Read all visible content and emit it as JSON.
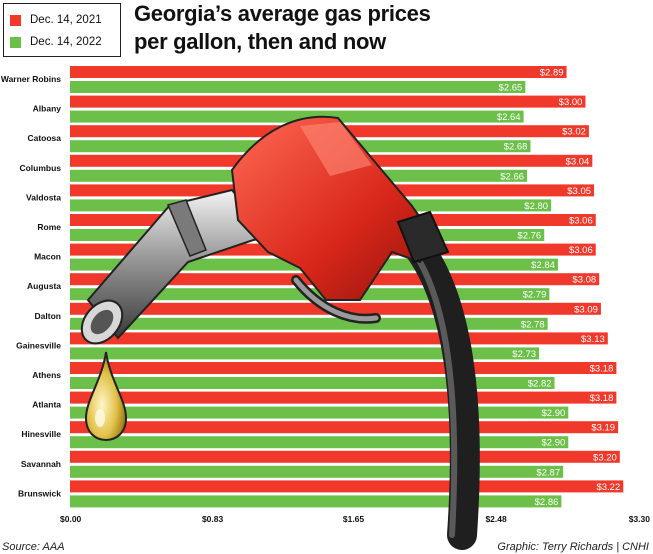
{
  "title": "Georgia’s average gas prices\nper gallon, then and now",
  "source": "Source: AAA",
  "credit": "Graphic: Terry Richards | CNHI",
  "colors": {
    "series_2021": "#f0392b",
    "series_2022": "#6cc04a"
  },
  "chart_data": {
    "type": "bar",
    "orientation": "horizontal",
    "title": "Georgia’s average gas prices per gallon, then and now",
    "xlim": [
      0,
      3.3
    ],
    "x_ticks": [
      "$0.00",
      "$0.83",
      "$1.65",
      "$2.48",
      "$3.30"
    ],
    "x_tick_values": [
      0,
      0.83,
      1.65,
      2.48,
      3.3
    ],
    "legend_position": "top-left",
    "categories": [
      "Warner Robins",
      "Albany",
      "Catoosa",
      "Columbus",
      "Valdosta",
      "Rome",
      "Macon",
      "Augusta",
      "Dalton",
      "Gainesville",
      "Athens",
      "Atlanta",
      "Hinesville",
      "Savannah",
      "Brunswick"
    ],
    "series": [
      {
        "name": "Dec. 14, 2021",
        "color": "#f0392b",
        "values": [
          2.89,
          3.0,
          3.02,
          3.04,
          3.05,
          3.06,
          3.06,
          3.08,
          3.09,
          3.13,
          3.18,
          3.18,
          3.19,
          3.2,
          3.22
        ],
        "labels": [
          "$2.89",
          "$3.00",
          "$3.02",
          "$3.04",
          "$3.05",
          "$3.06",
          "$3.06",
          "$3.08",
          "$3.09",
          "$3.13",
          "$3.18",
          "$3.18",
          "$3.19",
          "$3.20",
          "$3.22"
        ]
      },
      {
        "name": "Dec. 14, 2022",
        "color": "#6cc04a",
        "values": [
          2.65,
          2.64,
          2.68,
          2.66,
          2.8,
          2.76,
          2.84,
          2.79,
          2.78,
          2.73,
          2.82,
          2.9,
          2.9,
          2.87,
          2.86
        ],
        "labels": [
          "$2.65",
          "$2.64",
          "$2.68",
          "$2.66",
          "$2.80",
          "$2.76",
          "$2.84",
          "$2.79",
          "$2.78",
          "$2.73",
          "$2.82",
          "$2.90",
          "$2.90",
          "$2.87",
          "$2.86"
        ]
      }
    ]
  }
}
